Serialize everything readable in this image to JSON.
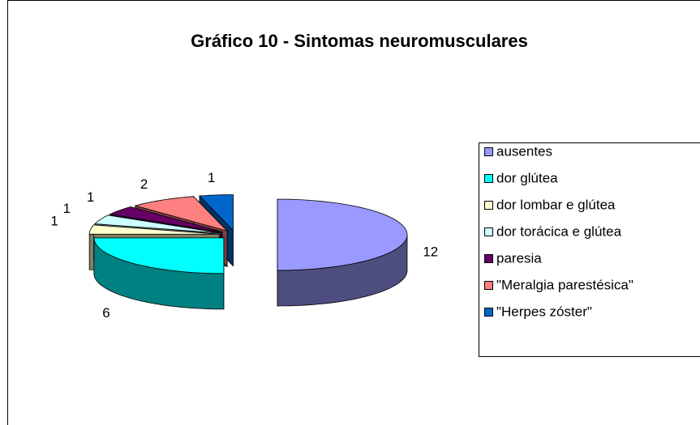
{
  "chart_data": {
    "type": "pie3d",
    "title": "Gráfico 10 - Sintomas neuromusculares",
    "categories": [
      "ausentes",
      "dor glútea",
      "dor lombar e glútea",
      "dor torácica e glútea",
      "paresia",
      "\"Meralgia parestésica\"",
      "\"Herpes zóster\""
    ],
    "values": [
      12,
      6,
      1,
      1,
      1,
      2,
      1
    ],
    "colors": [
      "#9999ff",
      "#00ffff",
      "#ffffcc",
      "#ccffff",
      "#660066",
      "#ff8080",
      "#0066cc"
    ],
    "legend": "right"
  }
}
